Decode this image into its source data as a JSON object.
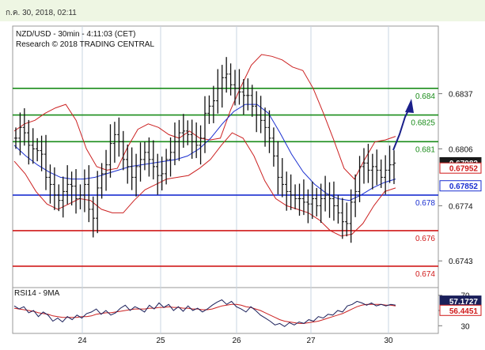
{
  "timestamp": "ก.ค. 30, 2018, 02:11",
  "chart_data": {
    "type": "line",
    "title": "NZD/USD - 30min - 4:11:03 (CET)",
    "subtitle": "Research © 2018 TRADING CENTRAL",
    "x_tick_labels": [
      "24",
      "25",
      "26",
      "27",
      "30"
    ],
    "price_axis": {
      "ticks": [
        "0.6837",
        "0.6806",
        "0.6774",
        "0.6743"
      ],
      "ylim": [
        0.6728,
        0.6875
      ]
    },
    "levels": [
      {
        "label": "0.684",
        "value": 0.684,
        "color": "#1a8c1a"
      },
      {
        "label": "0.6825",
        "value": 0.6825,
        "color": "#1a8c1a"
      },
      {
        "label": "0.681",
        "value": 0.681,
        "color": "#1a8c1a"
      },
      {
        "label": "0.678",
        "value": 0.678,
        "color": "#1a2fd0"
      },
      {
        "label": "0.676",
        "value": 0.676,
        "color": "#d01a1a"
      },
      {
        "label": "0.674",
        "value": 0.674,
        "color": "#d01a1a"
      }
    ],
    "price_badges": [
      {
        "label": "0.67982",
        "value": 0.67982,
        "bg": "#1a1a1a",
        "fg": "#ffffff"
      },
      {
        "label": "0.67952",
        "value": 0.67952,
        "bg": "#ffffff",
        "fg": "#d01a1a"
      },
      {
        "label": "0.67852",
        "value": 0.67852,
        "bg": "#ffffff",
        "fg": "#1a2fd0"
      }
    ],
    "close_series": [
      0.6812,
      0.6818,
      0.6815,
      0.6808,
      0.6806,
      0.6805,
      0.6803,
      0.679,
      0.6786,
      0.678,
      0.6777,
      0.6782,
      0.6786,
      0.6785,
      0.6778,
      0.678,
      0.6786,
      0.6772,
      0.6767,
      0.6784,
      0.6792,
      0.6797,
      0.6809,
      0.6814,
      0.681,
      0.68,
      0.6796,
      0.679,
      0.6796,
      0.68,
      0.6804,
      0.68,
      0.6796,
      0.6791,
      0.6792,
      0.68,
      0.6804,
      0.681,
      0.6815,
      0.6816,
      0.6814,
      0.681,
      0.6808,
      0.6812,
      0.6826,
      0.683,
      0.6833,
      0.684,
      0.6846,
      0.6848,
      0.6842,
      0.684,
      0.6838,
      0.6836,
      0.6836,
      0.683,
      0.6825,
      0.6822,
      0.6818,
      0.6812,
      0.6802,
      0.679,
      0.6786,
      0.6782,
      0.678,
      0.6778,
      0.6778,
      0.6776,
      0.6775,
      0.6778,
      0.6774,
      0.6778,
      0.678,
      0.6778,
      0.6774,
      0.677,
      0.6765,
      0.6764,
      0.6776,
      0.6782,
      0.6796,
      0.6798,
      0.6794,
      0.6796,
      0.6794,
      0.679,
      0.6794,
      0.6797,
      0.6798
    ],
    "sma_series": [
      0.6808,
      0.6802,
      0.6797,
      0.6793,
      0.679,
      0.6789,
      0.6789,
      0.679,
      0.6792,
      0.6794,
      0.6796,
      0.6797,
      0.6798,
      0.6799,
      0.68,
      0.6802,
      0.6806,
      0.6812,
      0.682,
      0.6827,
      0.6831,
      0.6831,
      0.6826,
      0.6815,
      0.6803,
      0.6793,
      0.6786,
      0.6781,
      0.6778,
      0.6777,
      0.678,
      0.6784,
      0.6787,
      0.6789
    ],
    "bollinger_upper": [
      0.6816,
      0.682,
      0.6822,
      0.6826,
      0.6829,
      0.6831,
      0.6822,
      0.6806,
      0.6796,
      0.6794,
      0.6795,
      0.6807,
      0.6817,
      0.682,
      0.6818,
      0.6814,
      0.6812,
      0.6816,
      0.6812,
      0.6811,
      0.6812,
      0.6828,
      0.6841,
      0.6853,
      0.6859,
      0.6858,
      0.6856,
      0.6852,
      0.685,
      0.684,
      0.6826,
      0.6811,
      0.6795,
      0.6789,
      0.68,
      0.681,
      0.6811,
      0.6813
    ],
    "bollinger_lower": [
      0.6799,
      0.6792,
      0.6782,
      0.6775,
      0.6772,
      0.6775,
      0.6778,
      0.6777,
      0.6772,
      0.677,
      0.677,
      0.6777,
      0.6783,
      0.6786,
      0.6789,
      0.679,
      0.6791,
      0.6795,
      0.68,
      0.6808,
      0.6815,
      0.6812,
      0.6802,
      0.6788,
      0.6778,
      0.6774,
      0.6772,
      0.677,
      0.6766,
      0.676,
      0.6757,
      0.6758,
      0.6764,
      0.6774,
      0.6782,
      0.6784
    ],
    "rsi": {
      "label": "RSI14 - 9MA",
      "ticks": [
        "70",
        "50",
        "30"
      ],
      "ylim": [
        22,
        78
      ],
      "badges": [
        {
          "label": "57.1727",
          "value": 57.17,
          "bg": "#1a1f5a",
          "fg": "#ffffff"
        },
        {
          "label": "56.4451",
          "value": 56.45,
          "bg": "#ffffff",
          "fg": "#d01a1a"
        }
      ],
      "values": [
        56,
        52,
        55,
        47,
        50,
        42,
        48,
        44,
        36,
        40,
        35,
        42,
        38,
        44,
        40,
        46,
        48,
        52,
        45,
        50,
        44,
        47,
        53,
        57,
        50,
        55,
        52,
        48,
        57,
        52,
        60,
        54,
        58,
        50,
        55,
        49,
        56,
        50,
        53,
        48,
        52,
        57,
        61,
        64,
        58,
        62,
        55,
        52,
        48,
        55,
        50,
        44,
        40,
        36,
        31,
        33,
        29,
        34,
        31,
        35,
        33,
        38,
        36,
        42,
        40,
        45,
        44,
        50,
        48,
        56,
        58,
        62,
        60,
        57,
        60,
        56,
        58,
        56,
        58,
        57
      ],
      "ma_values": [
        53,
        52,
        51,
        50,
        49,
        47,
        46,
        45,
        43,
        42,
        41,
        41,
        41,
        41,
        42,
        42,
        43,
        45,
        46,
        47,
        47,
        48,
        49,
        50,
        51,
        52,
        52,
        52,
        53,
        53,
        54,
        54,
        55,
        54,
        54,
        53,
        53,
        52,
        52,
        51,
        51,
        52,
        54,
        56,
        57,
        58,
        58,
        57,
        55,
        54,
        52,
        50,
        47,
        44,
        41,
        38,
        36,
        35,
        34,
        33,
        33,
        34,
        35,
        36,
        38,
        40,
        42,
        44,
        46,
        49,
        52,
        55,
        57,
        58,
        58,
        58,
        58,
        57,
        57,
        56
      ]
    }
  }
}
